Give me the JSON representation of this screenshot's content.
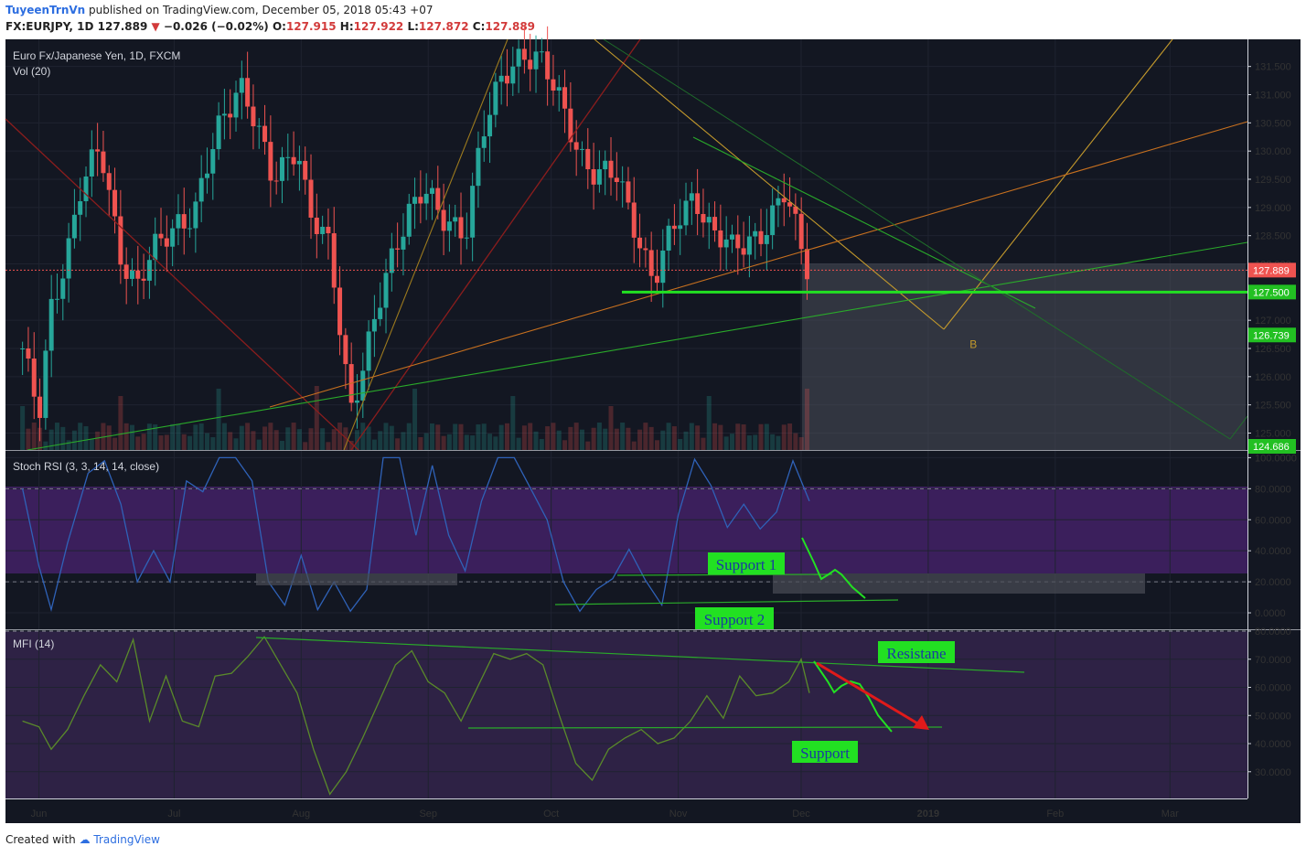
{
  "header": {
    "author": "TuyeenTrnVn",
    "published": "published on TradingView.com, December 05, 2018 05:43 +07",
    "symbol": "FX:EURJPY, 1D",
    "last": "127.889",
    "change": "−0.026 (−0.02%)",
    "o_label": "O:",
    "o": "127.915",
    "h_label": "H:",
    "h": "127.922",
    "l_label": "L:",
    "l": "127.872",
    "c_label": "C:",
    "c": "127.889"
  },
  "footer": {
    "created_with": "Created with",
    "brand": "TradingView"
  },
  "colors": {
    "background": "#131722",
    "up": "#26a69a",
    "down": "#ef5350",
    "rsi_zone": "#3b1f5c",
    "mfi_zone": "#2e2245",
    "rsi_line": "#2f62b8",
    "mfi_line": "#5a8a2a",
    "level_green": "#22e022"
  },
  "chart_data": [
    {
      "type": "candlestick",
      "title": "Euro Fx/Japanese Yen, 1D, FXCM",
      "subtitle": "Vol (20)",
      "x_ticks": [
        "Jun",
        "Jul",
        "Aug",
        "Sep",
        "Oct",
        "Nov",
        "Dec",
        "2019",
        "Feb",
        "Mar"
      ],
      "y_ticks": [
        "131.500",
        "131.000",
        "130.500",
        "130.000",
        "129.500",
        "129.000",
        "128.500",
        "128.000",
        "127.000",
        "126.500",
        "126.000",
        "125.500",
        "125.000"
      ],
      "ylim": [
        124.7,
        131.9
      ],
      "price_labels": [
        "127.889",
        "127.500",
        "126.739",
        "124.686"
      ],
      "last_price": 127.889,
      "support_level": 127.5,
      "pattern_point": {
        "label": "B",
        "date": "2019-01-12",
        "price": 126.8
      },
      "closes": [
        {
          "date": "2018-05-25",
          "close": 126.5
        },
        {
          "date": "2018-05-29",
          "close": 125.2
        },
        {
          "date": "2018-06-01",
          "close": 127.2
        },
        {
          "date": "2018-06-05",
          "close": 128.3
        },
        {
          "date": "2018-06-08",
          "close": 129.3
        },
        {
          "date": "2018-06-13",
          "close": 130.0
        },
        {
          "date": "2018-06-18",
          "close": 128.2
        },
        {
          "date": "2018-06-22",
          "close": 127.6
        },
        {
          "date": "2018-06-27",
          "close": 128.3
        },
        {
          "date": "2018-07-02",
          "close": 128.8
        },
        {
          "date": "2018-07-06",
          "close": 128.9
        },
        {
          "date": "2018-07-12",
          "close": 130.4
        },
        {
          "date": "2018-07-17",
          "close": 131.3
        },
        {
          "date": "2018-07-20",
          "close": 130.7
        },
        {
          "date": "2018-07-25",
          "close": 129.4
        },
        {
          "date": "2018-07-31",
          "close": 130.2
        },
        {
          "date": "2018-08-03",
          "close": 128.9
        },
        {
          "date": "2018-08-08",
          "close": 128.2
        },
        {
          "date": "2018-08-13",
          "close": 125.5
        },
        {
          "date": "2018-08-16",
          "close": 126.2
        },
        {
          "date": "2018-08-21",
          "close": 127.5
        },
        {
          "date": "2018-08-27",
          "close": 129.0
        },
        {
          "date": "2018-08-31",
          "close": 129.4
        },
        {
          "date": "2018-09-04",
          "close": 128.7
        },
        {
          "date": "2018-09-10",
          "close": 128.6
        },
        {
          "date": "2018-09-14",
          "close": 130.3
        },
        {
          "date": "2018-09-19",
          "close": 131.2
        },
        {
          "date": "2018-09-24",
          "close": 131.8
        },
        {
          "date": "2018-09-28",
          "close": 131.7
        },
        {
          "date": "2018-10-02",
          "close": 131.0
        },
        {
          "date": "2018-10-08",
          "close": 130.0
        },
        {
          "date": "2018-10-12",
          "close": 129.6
        },
        {
          "date": "2018-10-17",
          "close": 129.5
        },
        {
          "date": "2018-10-22",
          "close": 128.6
        },
        {
          "date": "2018-10-26",
          "close": 127.7
        },
        {
          "date": "2018-10-31",
          "close": 128.6
        },
        {
          "date": "2018-11-05",
          "close": 129.3
        },
        {
          "date": "2018-11-09",
          "close": 128.6
        },
        {
          "date": "2018-11-14",
          "close": 128.2
        },
        {
          "date": "2018-11-19",
          "close": 128.5
        },
        {
          "date": "2018-11-23",
          "close": 128.7
        },
        {
          "date": "2018-11-27",
          "close": 129.2
        },
        {
          "date": "2018-12-03",
          "close": 127.9
        }
      ]
    },
    {
      "type": "line",
      "title": "Stoch RSI (3, 3, 14, 14, close)",
      "y_ticks": [
        "100.0000",
        "80.0000",
        "60.0000",
        "40.0000",
        "20.0000",
        "0.0000"
      ],
      "ylim": [
        -10,
        102
      ],
      "bands": [
        20,
        80
      ],
      "annotations": [
        "Support 1",
        "Support 2"
      ],
      "series": [
        {
          "values": [
            {
              "date": "2018-05-25",
              "value": 80
            },
            {
              "date": "2018-05-29",
              "value": 30
            },
            {
              "date": "2018-06-01",
              "value": 2
            },
            {
              "date": "2018-06-05",
              "value": 45
            },
            {
              "date": "2018-06-10",
              "value": 90
            },
            {
              "date": "2018-06-14",
              "value": 98
            },
            {
              "date": "2018-06-18",
              "value": 70
            },
            {
              "date": "2018-06-22",
              "value": 20
            },
            {
              "date": "2018-06-26",
              "value": 40
            },
            {
              "date": "2018-06-30",
              "value": 20
            },
            {
              "date": "2018-07-04",
              "value": 85
            },
            {
              "date": "2018-07-08",
              "value": 78
            },
            {
              "date": "2018-07-12",
              "value": 100
            },
            {
              "date": "2018-07-16",
              "value": 100
            },
            {
              "date": "2018-07-20",
              "value": 85
            },
            {
              "date": "2018-07-24",
              "value": 20
            },
            {
              "date": "2018-07-28",
              "value": 5
            },
            {
              "date": "2018-08-01",
              "value": 37
            },
            {
              "date": "2018-08-05",
              "value": 2
            },
            {
              "date": "2018-08-09",
              "value": 20
            },
            {
              "date": "2018-08-13",
              "value": 1
            },
            {
              "date": "2018-08-17",
              "value": 15
            },
            {
              "date": "2018-08-21",
              "value": 100
            },
            {
              "date": "2018-08-25",
              "value": 100
            },
            {
              "date": "2018-08-29",
              "value": 50
            },
            {
              "date": "2018-09-02",
              "value": 95
            },
            {
              "date": "2018-09-06",
              "value": 50
            },
            {
              "date": "2018-09-10",
              "value": 27
            },
            {
              "date": "2018-09-14",
              "value": 72
            },
            {
              "date": "2018-09-18",
              "value": 100
            },
            {
              "date": "2018-09-22",
              "value": 100
            },
            {
              "date": "2018-09-26",
              "value": 80
            },
            {
              "date": "2018-09-30",
              "value": 60
            },
            {
              "date": "2018-10-04",
              "value": 20
            },
            {
              "date": "2018-10-08",
              "value": 1
            },
            {
              "date": "2018-10-12",
              "value": 15
            },
            {
              "date": "2018-10-16",
              "value": 22
            },
            {
              "date": "2018-10-20",
              "value": 41
            },
            {
              "date": "2018-10-24",
              "value": 21
            },
            {
              "date": "2018-10-28",
              "value": 5
            },
            {
              "date": "2018-11-01",
              "value": 63
            },
            {
              "date": "2018-11-05",
              "value": 99
            },
            {
              "date": "2018-11-09",
              "value": 82
            },
            {
              "date": "2018-11-13",
              "value": 55
            },
            {
              "date": "2018-11-17",
              "value": 70
            },
            {
              "date": "2018-11-21",
              "value": 54
            },
            {
              "date": "2018-11-25",
              "value": 65
            },
            {
              "date": "2018-11-29",
              "value": 98
            },
            {
              "date": "2018-12-03",
              "value": 72
            }
          ]
        }
      ]
    },
    {
      "type": "line",
      "title": "MFI (14)",
      "y_ticks": [
        "80.0000",
        "70.0000",
        "60.0000",
        "50.0000",
        "40.0000",
        "30.0000"
      ],
      "ylim": [
        20.5,
        80
      ],
      "bands": [
        80
      ],
      "annotations": [
        "Resistane",
        "Support"
      ],
      "series": [
        {
          "values": [
            {
              "date": "2018-05-25",
              "value": 48
            },
            {
              "date": "2018-05-29",
              "value": 46
            },
            {
              "date": "2018-06-01",
              "value": 38
            },
            {
              "date": "2018-06-05",
              "value": 45
            },
            {
              "date": "2018-06-09",
              "value": 57
            },
            {
              "date": "2018-06-13",
              "value": 68
            },
            {
              "date": "2018-06-17",
              "value": 62
            },
            {
              "date": "2018-06-21",
              "value": 77
            },
            {
              "date": "2018-06-25",
              "value": 48
            },
            {
              "date": "2018-06-29",
              "value": 64
            },
            {
              "date": "2018-07-03",
              "value": 48
            },
            {
              "date": "2018-07-07",
              "value": 46
            },
            {
              "date": "2018-07-11",
              "value": 64
            },
            {
              "date": "2018-07-15",
              "value": 65
            },
            {
              "date": "2018-07-19",
              "value": 71
            },
            {
              "date": "2018-07-23",
              "value": 78
            },
            {
              "date": "2018-07-27",
              "value": 68
            },
            {
              "date": "2018-07-31",
              "value": 58
            },
            {
              "date": "2018-08-04",
              "value": 38
            },
            {
              "date": "2018-08-08",
              "value": 22
            },
            {
              "date": "2018-08-12",
              "value": 30
            },
            {
              "date": "2018-08-16",
              "value": 42
            },
            {
              "date": "2018-08-20",
              "value": 55
            },
            {
              "date": "2018-08-24",
              "value": 68
            },
            {
              "date": "2018-08-28",
              "value": 73
            },
            {
              "date": "2018-09-01",
              "value": 62
            },
            {
              "date": "2018-09-05",
              "value": 58
            },
            {
              "date": "2018-09-09",
              "value": 48
            },
            {
              "date": "2018-09-13",
              "value": 60
            },
            {
              "date": "2018-09-17",
              "value": 72
            },
            {
              "date": "2018-09-21",
              "value": 70
            },
            {
              "date": "2018-09-25",
              "value": 72
            },
            {
              "date": "2018-09-29",
              "value": 68
            },
            {
              "date": "2018-10-03",
              "value": 50
            },
            {
              "date": "2018-10-07",
              "value": 33
            },
            {
              "date": "2018-10-11",
              "value": 27
            },
            {
              "date": "2018-10-15",
              "value": 38
            },
            {
              "date": "2018-10-19",
              "value": 42
            },
            {
              "date": "2018-10-23",
              "value": 45
            },
            {
              "date": "2018-10-27",
              "value": 40
            },
            {
              "date": "2018-10-31",
              "value": 42
            },
            {
              "date": "2018-11-04",
              "value": 48
            },
            {
              "date": "2018-11-08",
              "value": 57
            },
            {
              "date": "2018-11-12",
              "value": 49
            },
            {
              "date": "2018-11-16",
              "value": 64
            },
            {
              "date": "2018-11-20",
              "value": 57
            },
            {
              "date": "2018-11-24",
              "value": 58
            },
            {
              "date": "2018-11-28",
              "value": 62
            },
            {
              "date": "2018-12-01",
              "value": 70
            },
            {
              "date": "2018-12-03",
              "value": 58
            }
          ]
        }
      ]
    }
  ]
}
